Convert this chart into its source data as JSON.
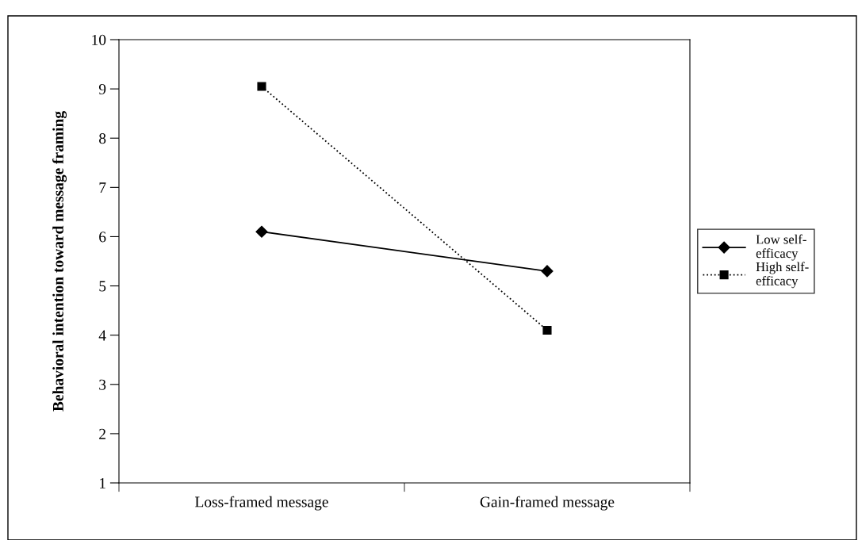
{
  "chart_data": {
    "type": "line",
    "ylabel": "Behavioral intention toward message framing",
    "categories": [
      "Loss-framed message",
      "Gain-framed message"
    ],
    "series": [
      {
        "name": "Low self-efficacy",
        "color": "#000000",
        "values": [
          6.1,
          5.3
        ],
        "marker": "diamond",
        "line_style": "solid"
      },
      {
        "name": "High self-efficacy",
        "color": "#000000",
        "values": [
          9.05,
          4.1
        ],
        "marker": "square",
        "line_style": "dotted"
      }
    ],
    "ylim": [
      1,
      10
    ],
    "yticks": [
      1,
      2,
      3,
      4,
      5,
      6,
      7,
      8,
      9,
      10
    ],
    "grid": false,
    "legend": "right"
  }
}
